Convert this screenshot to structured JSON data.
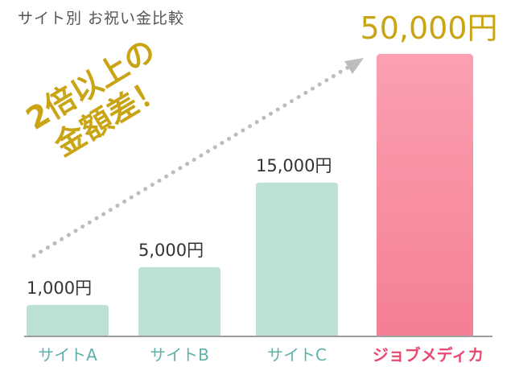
{
  "chart_title": "サイト別 お祝い金比較",
  "callout": {
    "line1": "2倍以上の",
    "line2": "金額差！"
  },
  "colors": {
    "bar_default": "#bde1d6",
    "bar_highlight_top": "#fca0b2",
    "bar_highlight_bottom": "#f47f94",
    "axis_label_default": "#5fb1aa",
    "axis_label_highlight": "#e84a72",
    "value_label": "#333333",
    "value_label_highlight": "#c9a414",
    "arrow": "#bdbdbd",
    "axis": "#9e9e9e"
  },
  "chart_data": {
    "type": "bar",
    "title": "サイト別 お祝い金比較",
    "categories": [
      "サイトA",
      "サイトB",
      "サイトC",
      "ジョブメディカ"
    ],
    "values": [
      1000,
      5000,
      15000,
      50000
    ],
    "value_labels": [
      "1,000円",
      "5,000円",
      "15,000円",
      "50,000円"
    ],
    "highlight_index": 3,
    "ylim": [
      0,
      50000
    ],
    "xlabel": "",
    "ylabel": "",
    "grid": false,
    "note": "y-axis not linear in original rendering"
  }
}
